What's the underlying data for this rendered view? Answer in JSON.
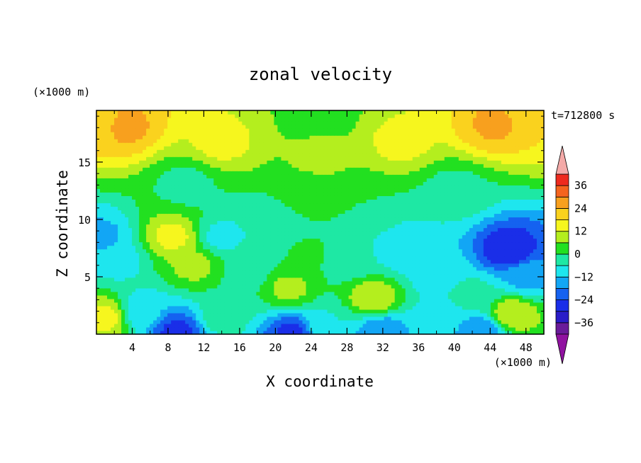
{
  "chart_data": {
    "type": "heatmap",
    "title": "zonal velocity",
    "xlabel": "X coordinate",
    "ylabel": "Z coordinate",
    "x_unit_label": "(×1000 m)",
    "y_unit_label": "(×1000 m)",
    "time_label": "t=712800 s",
    "xlim": [
      0,
      50
    ],
    "ylim": [
      0,
      19.5
    ],
    "x_ticks": [
      4,
      8,
      12,
      16,
      20,
      24,
      28,
      32,
      36,
      40,
      44,
      48
    ],
    "x_tick_labels": [
      "4",
      "8",
      "12",
      "16",
      "20",
      "24",
      "28",
      "32",
      "36",
      "40",
      "44",
      "48"
    ],
    "y_ticks": [
      5,
      10,
      15
    ],
    "y_tick_labels": [
      "5",
      "10",
      "15"
    ],
    "colorbar": {
      "levels": [
        -42,
        -36,
        -30,
        -24,
        -18,
        -12,
        -6,
        0,
        6,
        12,
        18,
        24,
        30,
        36,
        42
      ],
      "tick_values": [
        -36,
        -24,
        -12,
        0,
        12,
        24,
        36
      ],
      "tick_labels": [
        "−36",
        "−24",
        "−12",
        "0",
        "12",
        "24",
        "36"
      ],
      "colors": [
        "#6a1b9a",
        "#2a1cc8",
        "#1a2ee8",
        "#1562f0",
        "#12a6f5",
        "#1ee6ee",
        "#1ee8a4",
        "#22e020",
        "#b4ee1e",
        "#f6f61e",
        "#fad21e",
        "#f8a01e",
        "#f5641e",
        "#ee2a1e"
      ],
      "under_color": "#9012a0",
      "over_color": "#f4aaa8"
    },
    "field_centers": [
      {
        "x": 0,
        "z": 18.5,
        "v": 18
      },
      {
        "x": 50,
        "z": 18.5,
        "v": 18
      },
      {
        "x": 3,
        "z": 18.2,
        "v": 26
      },
      {
        "x": 44.5,
        "z": 18.3,
        "v": 25
      },
      {
        "x": 25,
        "z": 19.2,
        "v": 3
      },
      {
        "x": 14,
        "z": 16.8,
        "v": 14
      },
      {
        "x": 34,
        "z": 16.8,
        "v": 14
      },
      {
        "x": 25,
        "z": 15.5,
        "v": 8
      },
      {
        "x": 10,
        "z": 13,
        "v": -2
      },
      {
        "x": 40,
        "z": 12.5,
        "v": -2
      },
      {
        "x": 24,
        "z": 12,
        "v": 2
      },
      {
        "x": 0.5,
        "z": 8.5,
        "v": -14
      },
      {
        "x": 2.5,
        "z": 6.5,
        "v": -8
      },
      {
        "x": 8.5,
        "z": 8.5,
        "v": 14
      },
      {
        "x": 11,
        "z": 6,
        "v": 8
      },
      {
        "x": 14,
        "z": 8.5,
        "v": -8
      },
      {
        "x": 17,
        "z": 5.5,
        "v": -3
      },
      {
        "x": 19.5,
        "z": 9,
        "v": -6
      },
      {
        "x": 21.5,
        "z": 4,
        "v": 8
      },
      {
        "x": 23.5,
        "z": 7,
        "v": 1
      },
      {
        "x": 31,
        "z": 3.2,
        "v": 12
      },
      {
        "x": 28.5,
        "z": 6.5,
        "v": -4
      },
      {
        "x": 34,
        "z": 7.5,
        "v": -12
      },
      {
        "x": 38,
        "z": 5.5,
        "v": -10
      },
      {
        "x": 46,
        "z": 7.3,
        "v": -30
      },
      {
        "x": 48,
        "z": 5,
        "v": -14
      },
      {
        "x": 42,
        "z": 3.5,
        "v": -4
      },
      {
        "x": 46.5,
        "z": 1.8,
        "v": 12
      },
      {
        "x": 1,
        "z": 1.5,
        "v": 14
      },
      {
        "x": 5,
        "z": 2,
        "v": -10
      },
      {
        "x": 9,
        "z": 0.3,
        "v": -26
      },
      {
        "x": 14,
        "z": 1.5,
        "v": -3
      },
      {
        "x": 22,
        "z": 0.1,
        "v": -26
      },
      {
        "x": 32,
        "z": 0.2,
        "v": -18
      },
      {
        "x": 38,
        "z": 1.2,
        "v": -8
      },
      {
        "x": 43,
        "z": 0.2,
        "v": -18
      },
      {
        "x": 25.5,
        "z": 0.8,
        "v": -6
      },
      {
        "x": 30,
        "z": 10.5,
        "v": 0
      }
    ]
  }
}
